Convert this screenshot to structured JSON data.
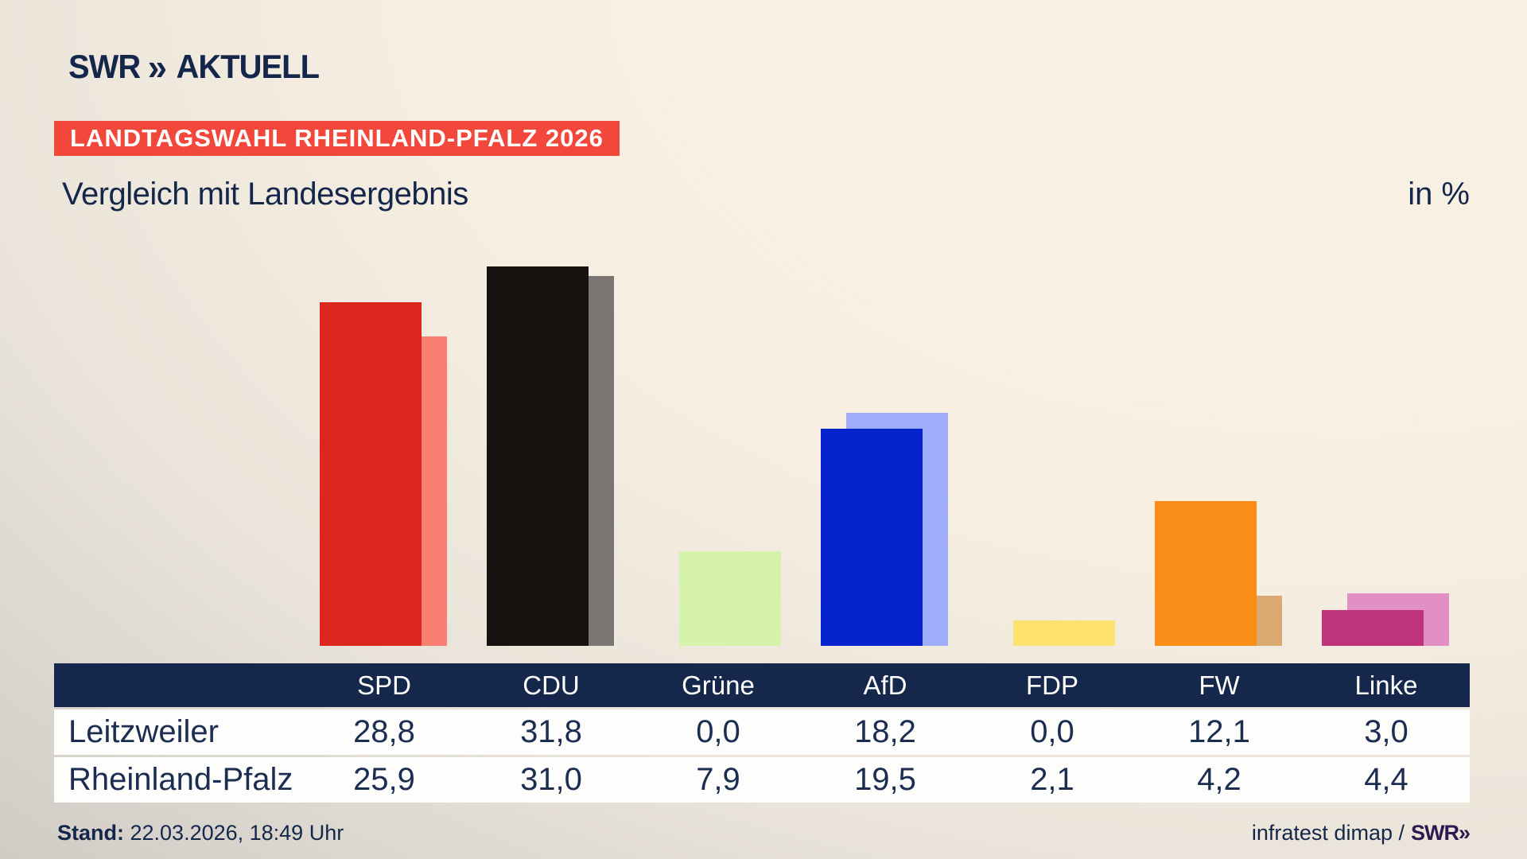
{
  "brand": {
    "swr": "SWR",
    "chevrons": "»",
    "aktuell": "AKTUELL"
  },
  "badge": {
    "label": "LANDTAGSWAHL RHEINLAND-PFALZ 2026",
    "bg": "#f2483c"
  },
  "title": "Vergleich mit Landesergebnis",
  "unit_label": "in %",
  "chart_data": {
    "type": "bar",
    "categories": [
      "SPD",
      "CDU",
      "Grüne",
      "AfD",
      "FDP",
      "FW",
      "Linke"
    ],
    "series": [
      {
        "name": "Leitzweiler",
        "values": [
          28.8,
          31.8,
          0.0,
          18.2,
          0.0,
          12.1,
          3.0
        ],
        "colors": [
          "#dc2721",
          "#161210",
          "#5aa02c",
          "#0723cd",
          "#fee26f",
          "#f98d18",
          "#bf337e"
        ]
      },
      {
        "name": "Rheinland-Pfalz",
        "values": [
          25.9,
          31.0,
          7.9,
          19.5,
          2.1,
          4.2,
          4.4
        ],
        "colors": [
          "#f97e72",
          "#7a7472",
          "#d6f3ab",
          "#9fadfa",
          "#fee26f",
          "#d9a970",
          "#e18fc5"
        ]
      }
    ],
    "title": "Vergleich mit Landesergebnis",
    "unit": "in %",
    "ylim": [
      0,
      33
    ],
    "grid": false,
    "legend_position": "table-below",
    "value_display": "comma-decimal"
  },
  "table": {
    "header_bg": "#15274a",
    "columns": [
      "SPD",
      "CDU",
      "Grüne",
      "AfD",
      "FDP",
      "FW",
      "Linke"
    ],
    "rows": [
      {
        "label": "Leitzweiler",
        "values": [
          "28,8",
          "31,8",
          "0,0",
          "18,2",
          "0,0",
          "12,1",
          "3,0"
        ]
      },
      {
        "label": "Rheinland-Pfalz",
        "values": [
          "25,9",
          "31,0",
          "7,9",
          "19,5",
          "2,1",
          "4,2",
          "4,4"
        ]
      }
    ]
  },
  "footer": {
    "stand_label": "Stand:",
    "stand_value": " 22.03.2026, 18:49 Uhr",
    "source": "infratest dimap /",
    "source_brand": "SWR»"
  },
  "colors": {
    "navy": "#15274a",
    "badge_red": "#f2483c",
    "background_cream": "#f8efe2",
    "background_gray": "#cdcac4",
    "row_white": "#fdfdfc"
  }
}
